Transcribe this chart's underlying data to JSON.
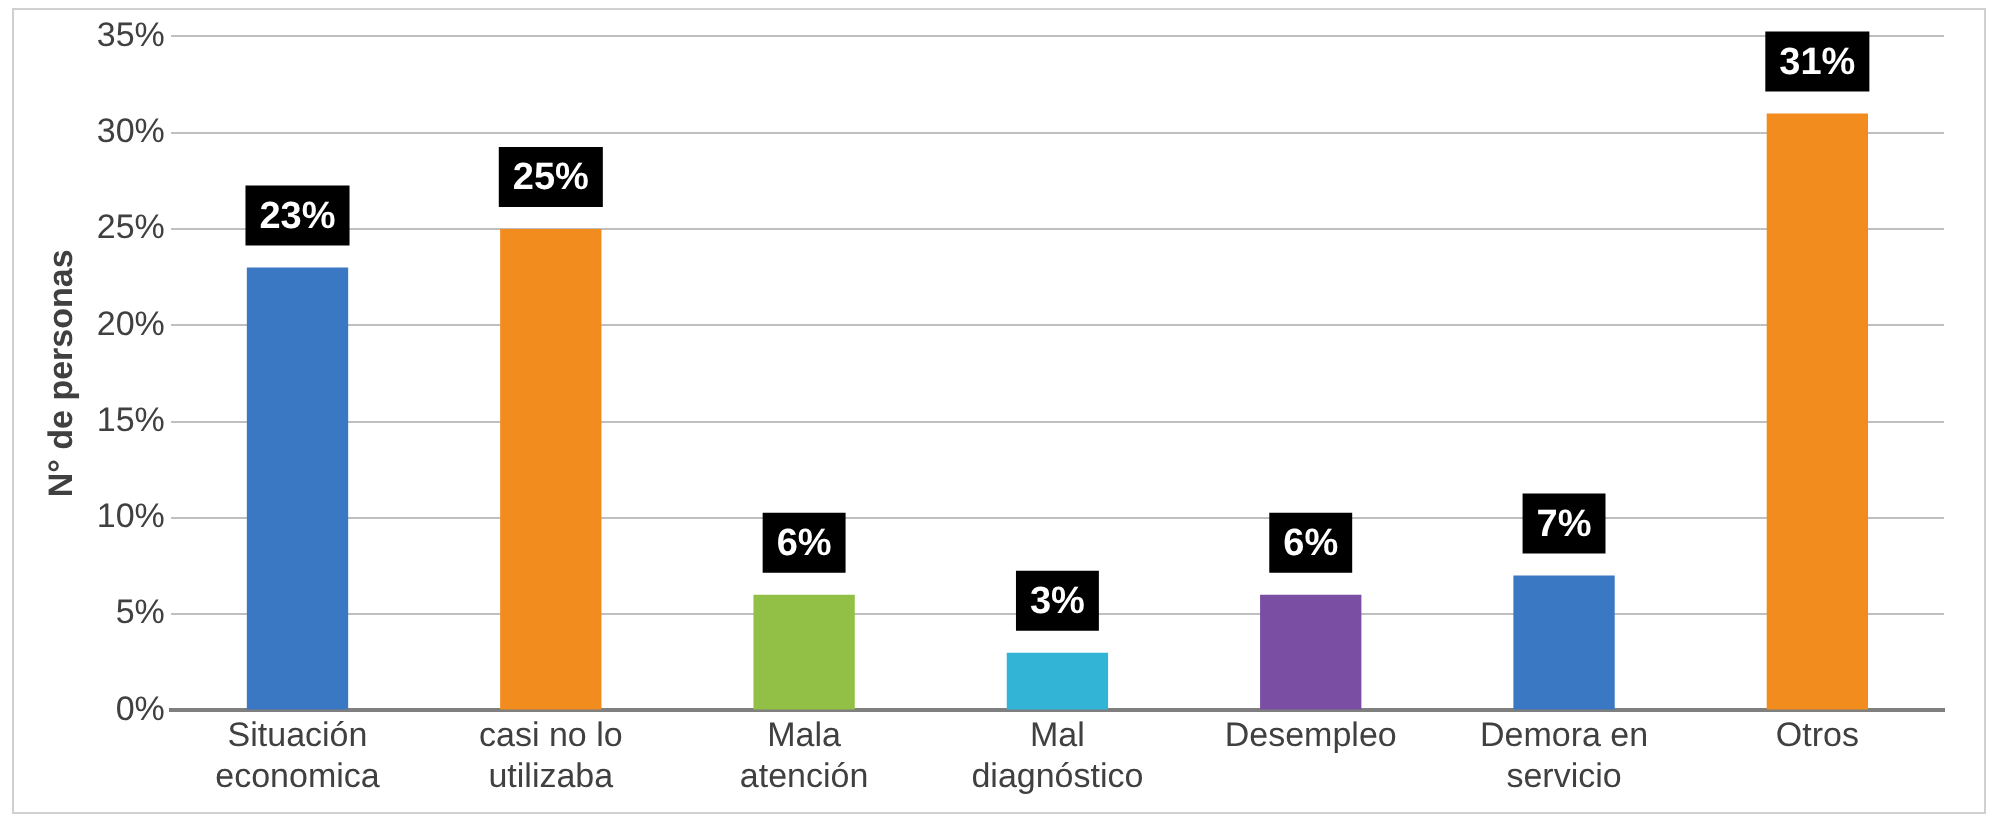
{
  "chart_data": {
    "type": "bar",
    "ylabel": "N° de personas",
    "categories": [
      "Situación economica",
      "casi no lo utilizaba",
      "Mala atención",
      "Mal diagnóstico",
      "Desempleo",
      "Demora en servicio",
      "Otros"
    ],
    "values": [
      23,
      25,
      6,
      3,
      6,
      7,
      31
    ],
    "colors": [
      "#3a78c4",
      "#f28c1e",
      "#92c046",
      "#32b4d6",
      "#7a4fa3",
      "#3a78c4",
      "#f28c1e"
    ],
    "value_labels": [
      "23%",
      "25%",
      "6%",
      "3%",
      "6%",
      "7%",
      "31%"
    ],
    "ylim": [
      0,
      35
    ],
    "yticks": [
      {
        "value": 0,
        "label": "0%"
      },
      {
        "value": 5,
        "label": "5%"
      },
      {
        "value": 10,
        "label": "10%"
      },
      {
        "value": 15,
        "label": "15%"
      },
      {
        "value": 20,
        "label": "20%"
      },
      {
        "value": 25,
        "label": "25%"
      },
      {
        "value": 30,
        "label": "30%"
      },
      {
        "value": 35,
        "label": "35%"
      }
    ],
    "grid": "y",
    "legend": false
  }
}
